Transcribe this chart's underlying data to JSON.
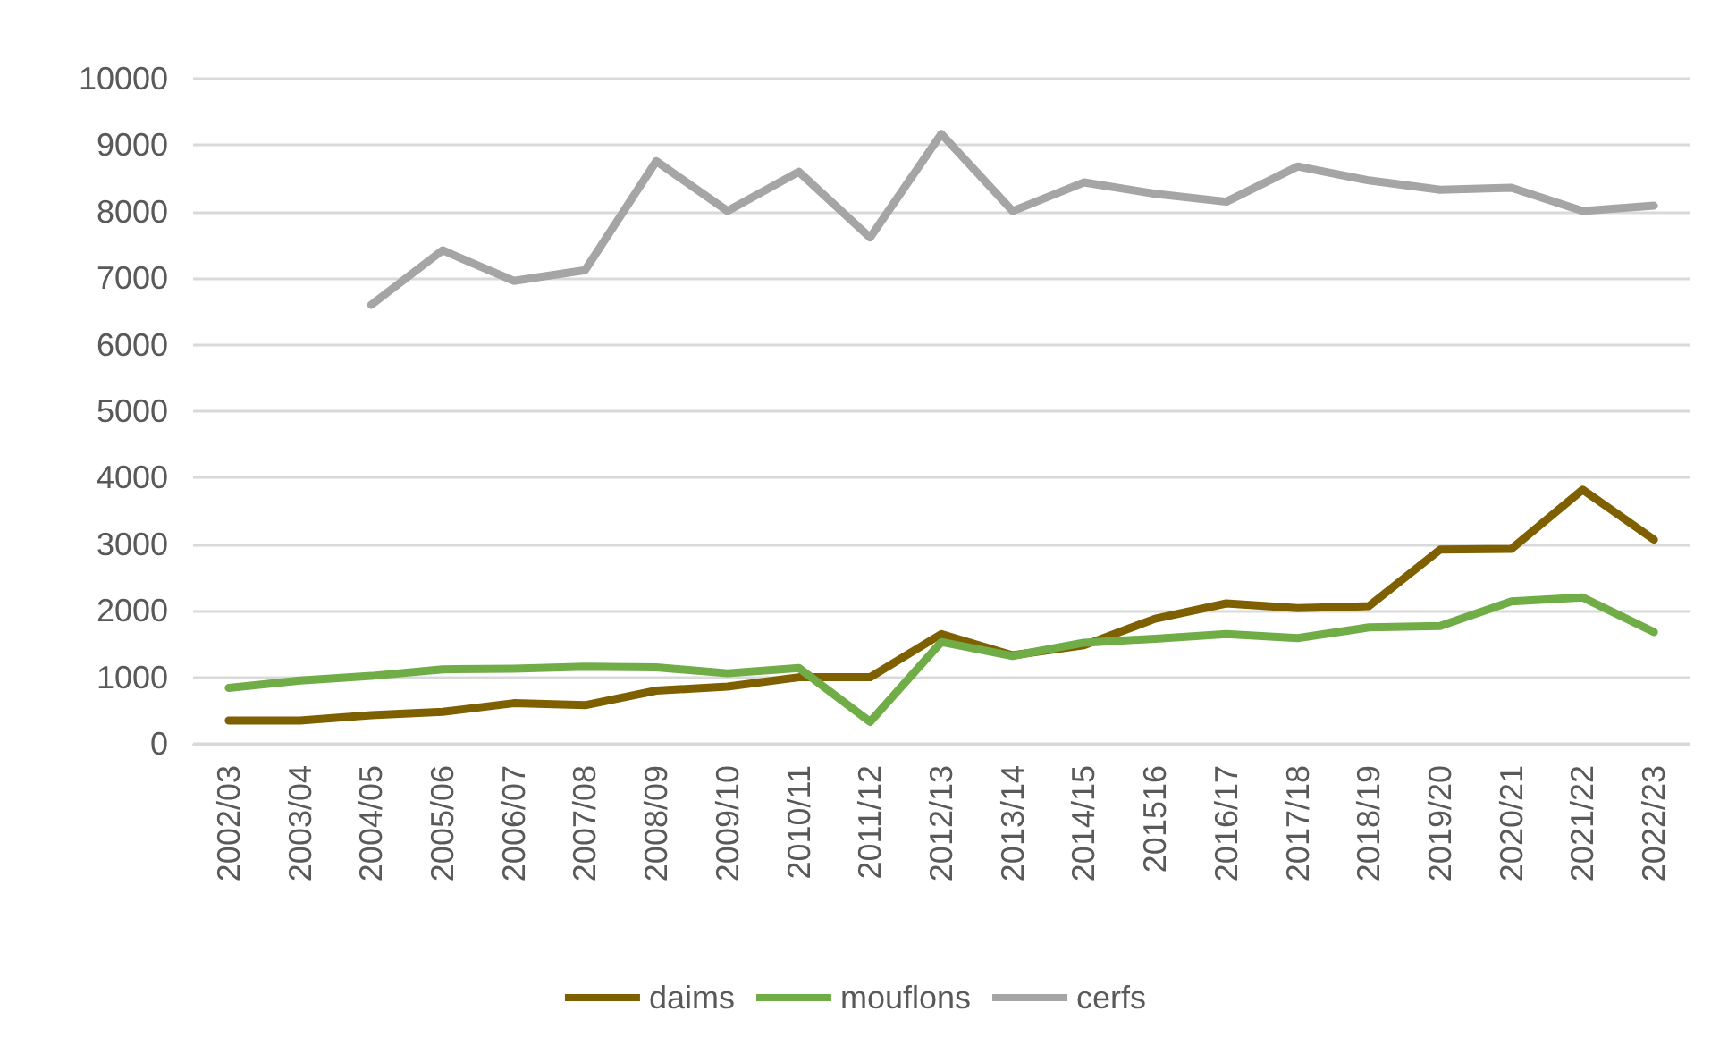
{
  "chart_data": {
    "type": "line",
    "categories": [
      "2002/03",
      "2003/04",
      "2004/05",
      "2005/06",
      "2006/07",
      "2007/08",
      "2008/09",
      "2009/10",
      "2010/11",
      "2011/12",
      "2012/13",
      "2013/14",
      "2014/15",
      "201516",
      "2016/17",
      "2017/18",
      "2018/19",
      "2019/20",
      "2020/21",
      "2021/22",
      "2022/23"
    ],
    "series": [
      {
        "name": "daims",
        "color": "#7f6000",
        "values": [
          350,
          350,
          430,
          480,
          610,
          580,
          800,
          860,
          1000,
          1000,
          1650,
          1330,
          1480,
          1880,
          2110,
          2040,
          2070,
          2920,
          2930,
          3820,
          3070
        ]
      },
      {
        "name": "mouflons",
        "color": "#70ad47",
        "values": [
          840,
          950,
          1020,
          1120,
          1130,
          1160,
          1150,
          1060,
          1140,
          330,
          1530,
          1320,
          1520,
          1580,
          1650,
          1590,
          1750,
          1770,
          2140,
          2200,
          1680
        ]
      },
      {
        "name": "cerfs",
        "color": "#a5a5a5",
        "values": [
          null,
          null,
          6600,
          7420,
          6960,
          7120,
          8760,
          8010,
          8600,
          7610,
          9170,
          8010,
          8440,
          8270,
          8150,
          8680,
          8470,
          8330,
          8360,
          8010,
          8090
        ]
      }
    ],
    "ylim": [
      0,
      10000
    ],
    "yticks": [
      0,
      1000,
      2000,
      3000,
      4000,
      5000,
      6000,
      7000,
      8000,
      9000,
      10000
    ],
    "grid": "y",
    "legend": "bottom",
    "marker": "none",
    "line_style": "solid"
  }
}
